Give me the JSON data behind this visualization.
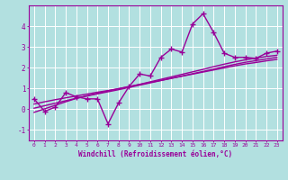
{
  "xlabel": "Windchill (Refroidissement éolien,°C)",
  "background_color": "#b2e0e0",
  "grid_color": "#ffffff",
  "line_color": "#990099",
  "x_data": [
    0,
    1,
    2,
    3,
    4,
    5,
    6,
    7,
    8,
    9,
    10,
    11,
    12,
    13,
    14,
    15,
    16,
    17,
    18,
    19,
    20,
    21,
    22,
    23
  ],
  "y_data": [
    0.5,
    -0.1,
    0.1,
    0.8,
    0.6,
    0.5,
    0.5,
    -0.7,
    0.3,
    1.1,
    1.7,
    1.6,
    2.5,
    2.9,
    2.75,
    4.1,
    4.6,
    3.7,
    2.7,
    2.5,
    2.5,
    2.45,
    2.7,
    2.8
  ],
  "trend1": [
    -0.15,
    0.02,
    0.19,
    0.36,
    0.52,
    0.65,
    0.77,
    0.88,
    0.99,
    1.09,
    1.2,
    1.32,
    1.44,
    1.56,
    1.68,
    1.8,
    1.92,
    2.05,
    2.17,
    2.28,
    2.38,
    2.46,
    2.54,
    2.6
  ],
  "trend2": [
    0.05,
    0.17,
    0.29,
    0.41,
    0.53,
    0.64,
    0.74,
    0.84,
    0.94,
    1.05,
    1.16,
    1.27,
    1.38,
    1.49,
    1.6,
    1.71,
    1.82,
    1.93,
    2.05,
    2.16,
    2.26,
    2.34,
    2.42,
    2.5
  ],
  "trend3": [
    0.25,
    0.36,
    0.46,
    0.55,
    0.64,
    0.73,
    0.82,
    0.9,
    0.99,
    1.09,
    1.19,
    1.29,
    1.39,
    1.49,
    1.59,
    1.69,
    1.79,
    1.89,
    1.99,
    2.09,
    2.18,
    2.25,
    2.33,
    2.4
  ],
  "xlim": [
    -0.5,
    23.5
  ],
  "ylim": [
    -1.5,
    5.0
  ],
  "yticks": [
    -1,
    0,
    1,
    2,
    3,
    4
  ],
  "xticks": [
    0,
    1,
    2,
    3,
    4,
    5,
    6,
    7,
    8,
    9,
    10,
    11,
    12,
    13,
    14,
    15,
    16,
    17,
    18,
    19,
    20,
    21,
    22,
    23
  ],
  "marker": "+",
  "markersize": 4,
  "linewidth": 1.0
}
